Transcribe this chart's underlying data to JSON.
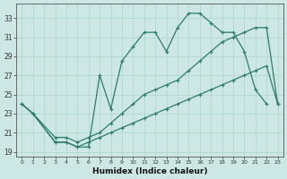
{
  "xlabel": "Humidex (Indice chaleur)",
  "bg_color": "#cde8e4",
  "grid_color": "#b0d8d0",
  "line_color": "#2d7a6e",
  "xlim": [
    -0.5,
    23.5
  ],
  "ylim": [
    18.5,
    34.5
  ],
  "yticks": [
    19,
    21,
    23,
    25,
    27,
    29,
    31,
    33
  ],
  "xticks": [
    0,
    1,
    2,
    3,
    4,
    5,
    6,
    7,
    8,
    9,
    10,
    11,
    12,
    13,
    14,
    15,
    16,
    17,
    18,
    19,
    20,
    21,
    22,
    23
  ],
  "curve_upper_x": [
    0,
    1,
    3,
    4,
    5,
    6,
    7,
    8,
    9,
    10,
    11,
    12,
    13,
    14,
    15,
    16,
    17,
    18,
    19,
    20,
    21,
    22
  ],
  "curve_upper_y": [
    24.0,
    23.0,
    20.0,
    20.0,
    19.5,
    19.5,
    27.0,
    23.5,
    28.5,
    30.0,
    31.5,
    31.5,
    29.5,
    32.0,
    33.5,
    33.5,
    32.5,
    31.5,
    31.5,
    29.5,
    25.5,
    24.0
  ],
  "curve_diag_x": [
    0,
    1,
    3,
    4,
    5,
    6,
    7,
    8,
    9,
    10,
    11,
    12,
    13,
    14,
    15,
    16,
    17,
    18,
    19,
    20,
    21,
    22,
    23
  ],
  "curve_diag_y": [
    24.0,
    23.0,
    20.5,
    20.5,
    20.0,
    20.5,
    21.0,
    22.0,
    23.0,
    24.0,
    25.0,
    25.5,
    26.0,
    26.5,
    27.5,
    28.5,
    29.5,
    30.5,
    31.0,
    31.5,
    32.0,
    32.0,
    24.0
  ],
  "curve_lower_x": [
    0,
    1,
    3,
    4,
    5,
    6,
    7,
    8,
    9,
    10,
    11,
    12,
    13,
    14,
    15,
    16,
    17,
    18,
    19,
    20,
    21,
    22,
    23
  ],
  "curve_lower_y": [
    24.0,
    23.0,
    20.0,
    20.0,
    19.5,
    20.0,
    20.5,
    21.0,
    21.5,
    22.0,
    22.5,
    23.0,
    23.5,
    24.0,
    24.5,
    25.0,
    25.5,
    26.0,
    26.5,
    27.0,
    27.5,
    28.0,
    24.0
  ]
}
